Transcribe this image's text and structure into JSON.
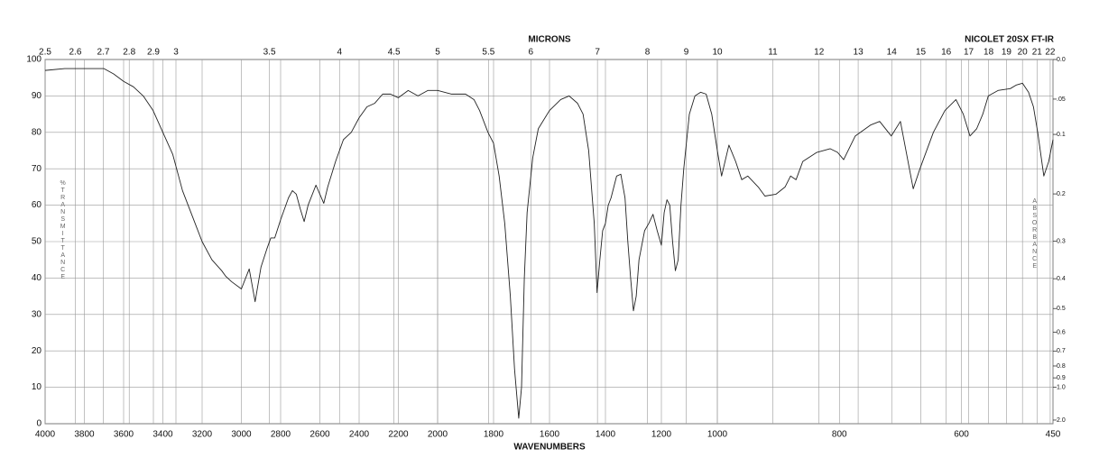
{
  "chart_data": {
    "type": "line",
    "title": "NICOLET 20SX FT-IR",
    "xlabel": "WAVENUMBERS",
    "x2label": "MICRONS",
    "ylabel": "%TRANSMITTANCE",
    "y2label": "ABSORBANCE",
    "color": "#222222",
    "grid": true,
    "xlim": [
      4000,
      450
    ],
    "xbreaks": [
      2000,
      1000
    ],
    "xticks": [
      4000,
      3800,
      3600,
      3400,
      3200,
      3000,
      2800,
      2600,
      2400,
      2200,
      2000,
      1800,
      1600,
      1400,
      1200,
      1000,
      800,
      600,
      450
    ],
    "x2scale": "microns",
    "x2ticks": [
      2.5,
      2.6,
      2.7,
      2.8,
      2.9,
      3,
      3.5,
      4,
      4.5,
      5,
      5.5,
      6,
      7,
      8,
      9,
      10,
      11,
      12,
      13,
      14,
      15,
      16,
      17,
      18,
      19,
      20,
      21,
      22
    ],
    "ylim": [
      0,
      100
    ],
    "yticks": [
      0,
      10,
      20,
      30,
      40,
      50,
      60,
      70,
      80,
      90,
      100
    ],
    "y2scale": "absorbance",
    "y2ticks": [
      {
        "value": 0,
        "label": "0.0"
      },
      {
        "value": 0.05,
        "label": ".05"
      },
      {
        "value": 0.1,
        "label": "0.1"
      },
      {
        "value": 0.2,
        "label": "0.2"
      },
      {
        "value": 0.3,
        "label": "0.3"
      },
      {
        "value": 0.4,
        "label": "0.4"
      },
      {
        "value": 0.5,
        "label": "0.5"
      },
      {
        "value": 0.6,
        "label": "0.6"
      },
      {
        "value": 0.7,
        "label": "0.7"
      },
      {
        "value": 0.8,
        "label": "0.8"
      },
      {
        "value": 0.9,
        "label": "0.9"
      },
      {
        "value": 1,
        "label": "1.0"
      },
      {
        "value": 2,
        "label": "2.0"
      }
    ],
    "x": [
      4000,
      3900,
      3800,
      3700,
      3650,
      3600,
      3550,
      3500,
      3450,
      3400,
      3350,
      3300,
      3250,
      3200,
      3150,
      3100,
      3080,
      3050,
      3000,
      2960,
      2930,
      2900,
      2870,
      2850,
      2830,
      2800,
      2760,
      2740,
      2720,
      2700,
      2680,
      2660,
      2620,
      2600,
      2580,
      2560,
      2520,
      2480,
      2440,
      2400,
      2360,
      2320,
      2280,
      2240,
      2200,
      2150,
      2100,
      2050,
      2000,
      1950,
      1900,
      1870,
      1850,
      1820,
      1800,
      1780,
      1760,
      1740,
      1725,
      1710,
      1700,
      1690,
      1680,
      1660,
      1640,
      1600,
      1560,
      1530,
      1500,
      1480,
      1460,
      1440,
      1430,
      1420,
      1410,
      1400,
      1390,
      1380,
      1370,
      1360,
      1345,
      1330,
      1320,
      1310,
      1300,
      1290,
      1280,
      1260,
      1245,
      1230,
      1215,
      1200,
      1190,
      1180,
      1170,
      1160,
      1150,
      1140,
      1130,
      1120,
      1100,
      1080,
      1060,
      1040,
      1020,
      1000,
      993,
      981,
      970,
      960,
      950,
      933,
      922,
      904,
      889,
      880,
      871,
      860,
      837,
      815,
      803,
      793,
      774,
      749,
      734,
      715,
      700,
      679,
      668,
      646,
      627,
      609,
      597,
      586,
      575,
      565,
      556,
      540,
      520,
      510,
      500,
      490,
      482,
      475,
      465,
      457,
      450
    ],
    "values": [
      97,
      97.5,
      97.5,
      97.5,
      96,
      94,
      92.5,
      90,
      86,
      80,
      74,
      64,
      57,
      50,
      45,
      42,
      40.5,
      39,
      37,
      42.5,
      33.5,
      43,
      48,
      51,
      51,
      56,
      62,
      64,
      63,
      59,
      55.5,
      60,
      65.5,
      63,
      60.5,
      65,
      72,
      78,
      80,
      84,
      87,
      88,
      90.5,
      90.5,
      89.5,
      91.5,
      90,
      91.5,
      91.5,
      90.5,
      90.5,
      89,
      86,
      80,
      77,
      68,
      55,
      35,
      15,
      1.5,
      10,
      40,
      58,
      73,
      81,
      86,
      89,
      90,
      88,
      85,
      75,
      55,
      36,
      45,
      53,
      55,
      60,
      62,
      65,
      68,
      68.5,
      62,
      50,
      40,
      31,
      35,
      45,
      53,
      55,
      57.5,
      53,
      49,
      58,
      61.5,
      60,
      50,
      42,
      45,
      60,
      70,
      85,
      90,
      91,
      90.5,
      85,
      75,
      68,
      76.5,
      72,
      67,
      68,
      65,
      62.5,
      63,
      65,
      68,
      67,
      72,
      74.5,
      75.5,
      74.5,
      72.5,
      79,
      82,
      83,
      79,
      83,
      64.5,
      70,
      80,
      86,
      89,
      85,
      79,
      81,
      85,
      90,
      91.5,
      92,
      93,
      93.5,
      91,
      87,
      80,
      68,
      72,
      78
    ]
  }
}
